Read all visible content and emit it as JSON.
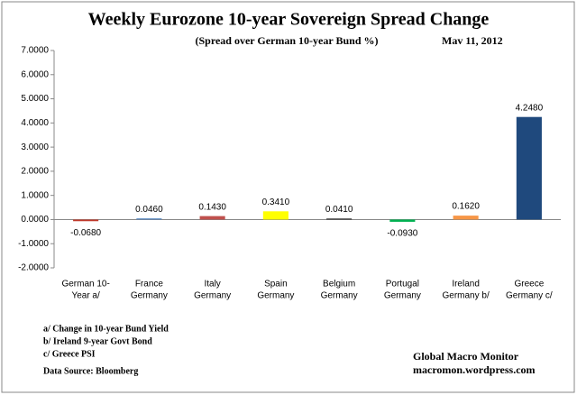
{
  "chart_data": {
    "type": "bar",
    "title": "Weekly Eurozone 10-year Sovereign Spread Change",
    "subtitle": "(Spread over German 10-year Bund  %)",
    "date": "Mav 11,  2012",
    "categories": [
      [
        "German 10-",
        "Year a/"
      ],
      [
        "France",
        "Germany"
      ],
      [
        "Italy",
        "Germany"
      ],
      [
        "Spain",
        "Germany"
      ],
      [
        "Belgium",
        "Germany"
      ],
      [
        "Portugal",
        "Germany"
      ],
      [
        "Ireland",
        "Germany b/"
      ],
      [
        "Greece",
        "Germany c/"
      ]
    ],
    "values": [
      -0.068,
      0.046,
      0.143,
      0.341,
      0.041,
      -0.093,
      0.162,
      4.248
    ],
    "value_labels": [
      "-0.0680",
      "0.0460",
      "0.1430",
      "0.3410",
      "0.0410",
      "-0.0930",
      "0.1620",
      "4.2480"
    ],
    "colors": [
      "#c0392b",
      "#4f81bd",
      "#c0504d",
      "#ffff00",
      "#222222",
      "#00b050",
      "#f79646",
      "#1f497d"
    ],
    "ylim": [
      -2,
      7
    ],
    "yticks": [
      {
        "value": -2,
        "label": "-2.0000"
      },
      {
        "value": -1,
        "label": "-1.0000"
      },
      {
        "value": 0,
        "label": "0.0000"
      },
      {
        "value": 1,
        "label": "1.0000"
      },
      {
        "value": 2,
        "label": "2.0000"
      },
      {
        "value": 3,
        "label": "3.0000"
      },
      {
        "value": 4,
        "label": "4.0000"
      },
      {
        "value": 5,
        "label": "5.0000"
      },
      {
        "value": 6,
        "label": "6.0000"
      },
      {
        "value": 7,
        "label": "7.0000"
      }
    ],
    "notes": [
      "a/ Change in 10-year Bund Yield",
      "b/ Ireland 9-year Govt Bond",
      "c/ Greece PSI",
      "Data Source:  Bloomberg"
    ],
    "credit": [
      "Global Macro Monitor",
      "macromon.wordpress.com"
    ]
  }
}
